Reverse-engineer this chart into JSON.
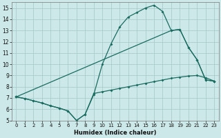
{
  "xlabel": "Humidex (Indice chaleur)",
  "xlim": [
    -0.5,
    23.5
  ],
  "ylim": [
    5,
    15.5
  ],
  "yticks": [
    5,
    6,
    7,
    8,
    9,
    10,
    11,
    12,
    13,
    14,
    15
  ],
  "xticks": [
    0,
    1,
    2,
    3,
    4,
    5,
    6,
    7,
    8,
    9,
    10,
    11,
    12,
    13,
    14,
    15,
    16,
    17,
    18,
    19,
    20,
    21,
    22,
    23
  ],
  "bg_color": "#cce8e8",
  "grid_color": "#aacccc",
  "line_color": "#1a6b60",
  "curve_top_x": [
    0,
    1,
    2,
    3,
    4,
    5,
    6,
    7,
    8,
    9,
    10,
    11,
    12,
    13,
    14,
    15,
    16,
    17,
    18,
    19,
    20,
    21,
    22,
    23
  ],
  "curve_top_y": [
    7.1,
    6.95,
    6.75,
    6.55,
    6.3,
    6.1,
    5.85,
    5.0,
    5.55,
    7.3,
    10.0,
    11.8,
    13.3,
    14.2,
    14.6,
    15.0,
    15.25,
    14.7,
    13.0,
    13.1,
    11.5,
    10.4,
    8.6,
    8.5
  ],
  "curve_mid_x": [
    0,
    18,
    19,
    20,
    21,
    22,
    23
  ],
  "curve_mid_y": [
    7.1,
    13.0,
    13.1,
    11.5,
    10.4,
    8.6,
    8.5
  ],
  "curve_bot_x": [
    0,
    1,
    2,
    3,
    4,
    5,
    6,
    7,
    8,
    9,
    10,
    11,
    12,
    13,
    14,
    15,
    16,
    17,
    18,
    19,
    20,
    21,
    22,
    23
  ],
  "curve_bot_y": [
    7.1,
    6.95,
    6.75,
    6.55,
    6.3,
    6.1,
    5.85,
    5.0,
    5.55,
    7.4,
    7.55,
    7.7,
    7.85,
    8.0,
    8.15,
    8.3,
    8.45,
    8.6,
    8.75,
    8.85,
    8.95,
    9.0,
    8.8,
    8.5
  ]
}
